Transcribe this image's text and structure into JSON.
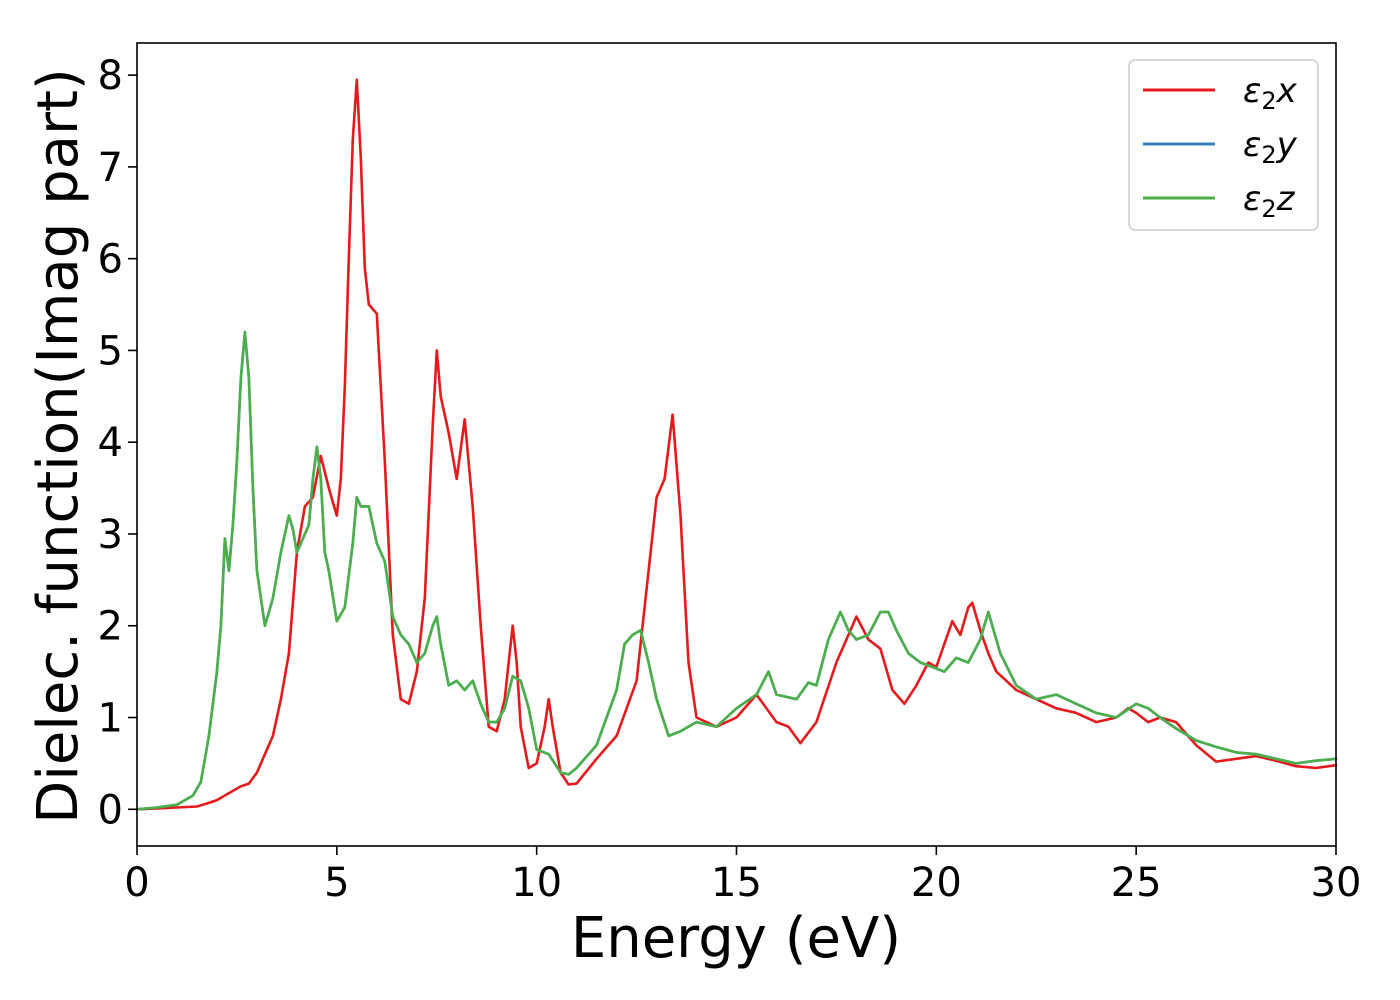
{
  "chart_data": {
    "type": "line",
    "xlabel": "Energy (eV)",
    "ylabel": "Dielec. function(Imag part)",
    "xlim": [
      0,
      30
    ],
    "ylim": [
      -0.4,
      8.35
    ],
    "xticks": [
      "0",
      "5",
      "10",
      "15",
      "20",
      "25",
      "30"
    ],
    "yticks": [
      "0",
      "1",
      "2",
      "3",
      "4",
      "5",
      "6",
      "7",
      "8"
    ],
    "grid": false,
    "legend_position": "top-right",
    "series": [
      {
        "name": "ε2x",
        "legend_base": "ε",
        "legend_sub": "2",
        "legend_axis": "x",
        "color": "#e41a1c",
        "x": [
          0,
          0.5,
          1.0,
          1.5,
          1.8,
          2.0,
          2.2,
          2.4,
          2.6,
          2.8,
          3.0,
          3.2,
          3.4,
          3.6,
          3.8,
          4.0,
          4.2,
          4.4,
          4.6,
          4.8,
          5.0,
          5.1,
          5.2,
          5.3,
          5.4,
          5.5,
          5.6,
          5.7,
          5.8,
          6.0,
          6.2,
          6.4,
          6.6,
          6.8,
          7.0,
          7.2,
          7.4,
          7.5,
          7.6,
          7.8,
          8.0,
          8.2,
          8.4,
          8.6,
          8.8,
          9.0,
          9.2,
          9.4,
          9.5,
          9.6,
          9.8,
          10.0,
          10.2,
          10.3,
          10.4,
          10.6,
          10.8,
          11.0,
          11.5,
          12.0,
          12.5,
          12.8,
          13.0,
          13.2,
          13.4,
          13.6,
          13.8,
          14.0,
          14.5,
          15.0,
          15.5,
          16.0,
          16.3,
          16.6,
          17.0,
          17.5,
          18.0,
          18.3,
          18.6,
          18.9,
          19.2,
          19.5,
          19.8,
          20.0,
          20.2,
          20.4,
          20.6,
          20.8,
          20.9,
          21.1,
          21.3,
          21.5,
          22.0,
          22.5,
          23.0,
          23.5,
          24.0,
          24.5,
          24.8,
          25.0,
          25.3,
          25.6,
          26.0,
          26.5,
          27.0,
          27.5,
          28.0,
          28.5,
          29.0,
          29.5,
          30.0
        ],
        "y": [
          0.0,
          0.01,
          0.02,
          0.03,
          0.07,
          0.1,
          0.15,
          0.2,
          0.25,
          0.28,
          0.4,
          0.6,
          0.8,
          1.2,
          1.7,
          2.8,
          3.3,
          3.4,
          3.85,
          3.5,
          3.2,
          3.6,
          4.6,
          6.0,
          7.3,
          7.95,
          7.1,
          5.9,
          5.5,
          5.4,
          3.8,
          1.9,
          1.2,
          1.15,
          1.5,
          2.3,
          4.2,
          5.0,
          4.5,
          4.1,
          3.6,
          4.25,
          3.3,
          2.0,
          0.9,
          0.85,
          1.2,
          2.0,
          1.6,
          0.9,
          0.45,
          0.5,
          0.9,
          1.2,
          0.9,
          0.4,
          0.27,
          0.28,
          0.55,
          0.8,
          1.4,
          2.6,
          3.4,
          3.6,
          4.3,
          3.2,
          1.6,
          1.0,
          0.9,
          1.0,
          1.25,
          0.95,
          0.9,
          0.72,
          0.95,
          1.6,
          2.1,
          1.85,
          1.75,
          1.3,
          1.15,
          1.35,
          1.6,
          1.55,
          1.8,
          2.05,
          1.9,
          2.2,
          2.25,
          1.95,
          1.7,
          1.5,
          1.3,
          1.2,
          1.1,
          1.05,
          0.95,
          1.0,
          1.1,
          1.05,
          0.95,
          1.0,
          0.95,
          0.7,
          0.52,
          0.55,
          0.58,
          0.53,
          0.47,
          0.45,
          0.48
        ]
      },
      {
        "name": "ε2y",
        "legend_base": "ε",
        "legend_sub": "2",
        "legend_axis": "y",
        "color": "#377eb8",
        "x": [
          0,
          0.5,
          1.0,
          1.4,
          1.6,
          1.8,
          2.0,
          2.1,
          2.2,
          2.3,
          2.4,
          2.5,
          2.6,
          2.7,
          2.8,
          2.9,
          3.0,
          3.2,
          3.4,
          3.6,
          3.8,
          3.9,
          4.0,
          4.1,
          4.2,
          4.3,
          4.4,
          4.5,
          4.6,
          4.7,
          4.8,
          5.0,
          5.2,
          5.4,
          5.5,
          5.6,
          5.8,
          6.0,
          6.2,
          6.4,
          6.6,
          6.8,
          7.0,
          7.2,
          7.4,
          7.5,
          7.6,
          7.8,
          8.0,
          8.2,
          8.4,
          8.6,
          8.8,
          9.0,
          9.2,
          9.4,
          9.6,
          9.8,
          10.0,
          10.3,
          10.6,
          10.8,
          11.0,
          11.5,
          12.0,
          12.2,
          12.4,
          12.6,
          12.8,
          13.0,
          13.3,
          13.6,
          14.0,
          14.5,
          15.0,
          15.5,
          15.8,
          16.0,
          16.5,
          16.8,
          17.0,
          17.3,
          17.6,
          17.8,
          18.0,
          18.3,
          18.6,
          18.8,
          19.0,
          19.3,
          19.6,
          19.9,
          20.2,
          20.5,
          20.8,
          21.1,
          21.3,
          21.6,
          22.0,
          22.5,
          23.0,
          23.5,
          24.0,
          24.5,
          25.0,
          25.3,
          25.6,
          26.0,
          26.5,
          27.0,
          27.5,
          28.0,
          28.5,
          29.0,
          29.5,
          30.0
        ],
        "y": [
          0.0,
          0.02,
          0.05,
          0.15,
          0.3,
          0.8,
          1.5,
          2.0,
          2.95,
          2.6,
          3.1,
          3.8,
          4.7,
          5.2,
          4.7,
          3.5,
          2.6,
          2.0,
          2.3,
          2.8,
          3.2,
          3.05,
          2.8,
          2.9,
          3.0,
          3.1,
          3.6,
          3.95,
          3.6,
          2.8,
          2.6,
          2.05,
          2.2,
          2.9,
          3.4,
          3.3,
          3.3,
          2.9,
          2.7,
          2.1,
          1.9,
          1.8,
          1.6,
          1.7,
          2.0,
          2.1,
          1.8,
          1.35,
          1.4,
          1.3,
          1.4,
          1.15,
          0.95,
          0.95,
          1.1,
          1.45,
          1.4,
          1.1,
          0.65,
          0.6,
          0.4,
          0.38,
          0.45,
          0.7,
          1.3,
          1.8,
          1.9,
          1.95,
          1.6,
          1.2,
          0.8,
          0.85,
          0.95,
          0.9,
          1.1,
          1.25,
          1.5,
          1.25,
          1.2,
          1.38,
          1.35,
          1.85,
          2.15,
          1.95,
          1.85,
          1.9,
          2.15,
          2.15,
          1.95,
          1.7,
          1.6,
          1.55,
          1.5,
          1.65,
          1.6,
          1.85,
          2.15,
          1.7,
          1.35,
          1.2,
          1.25,
          1.15,
          1.05,
          1.0,
          1.15,
          1.1,
          1.0,
          0.88,
          0.75,
          0.68,
          0.62,
          0.6,
          0.55,
          0.5,
          0.53,
          0.55
        ]
      },
      {
        "name": "ε2z",
        "legend_base": "ε",
        "legend_sub": "2",
        "legend_axis": "z",
        "color": "#4daf4a",
        "x": [
          0,
          0.5,
          1.0,
          1.4,
          1.6,
          1.8,
          2.0,
          2.1,
          2.2,
          2.3,
          2.4,
          2.5,
          2.6,
          2.7,
          2.8,
          2.9,
          3.0,
          3.2,
          3.4,
          3.6,
          3.8,
          3.9,
          4.0,
          4.1,
          4.2,
          4.3,
          4.4,
          4.5,
          4.6,
          4.7,
          4.8,
          5.0,
          5.2,
          5.4,
          5.5,
          5.6,
          5.8,
          6.0,
          6.2,
          6.4,
          6.6,
          6.8,
          7.0,
          7.2,
          7.4,
          7.5,
          7.6,
          7.8,
          8.0,
          8.2,
          8.4,
          8.6,
          8.8,
          9.0,
          9.2,
          9.4,
          9.6,
          9.8,
          10.0,
          10.3,
          10.6,
          10.8,
          11.0,
          11.5,
          12.0,
          12.2,
          12.4,
          12.6,
          12.8,
          13.0,
          13.3,
          13.6,
          14.0,
          14.5,
          15.0,
          15.5,
          15.8,
          16.0,
          16.5,
          16.8,
          17.0,
          17.3,
          17.6,
          17.8,
          18.0,
          18.3,
          18.6,
          18.8,
          19.0,
          19.3,
          19.6,
          19.9,
          20.2,
          20.5,
          20.8,
          21.1,
          21.3,
          21.6,
          22.0,
          22.5,
          23.0,
          23.5,
          24.0,
          24.5,
          25.0,
          25.3,
          25.6,
          26.0,
          26.5,
          27.0,
          27.5,
          28.0,
          28.5,
          29.0,
          29.5,
          30.0
        ],
        "y": [
          0.0,
          0.02,
          0.05,
          0.15,
          0.3,
          0.8,
          1.5,
          2.0,
          2.95,
          2.6,
          3.1,
          3.8,
          4.7,
          5.2,
          4.7,
          3.5,
          2.6,
          2.0,
          2.3,
          2.8,
          3.2,
          3.05,
          2.8,
          2.9,
          3.0,
          3.1,
          3.6,
          3.95,
          3.6,
          2.8,
          2.6,
          2.05,
          2.2,
          2.9,
          3.4,
          3.3,
          3.3,
          2.9,
          2.7,
          2.1,
          1.9,
          1.8,
          1.6,
          1.7,
          2.0,
          2.1,
          1.8,
          1.35,
          1.4,
          1.3,
          1.4,
          1.15,
          0.95,
          0.95,
          1.1,
          1.45,
          1.4,
          1.1,
          0.65,
          0.6,
          0.4,
          0.38,
          0.45,
          0.7,
          1.3,
          1.8,
          1.9,
          1.95,
          1.6,
          1.2,
          0.8,
          0.85,
          0.95,
          0.9,
          1.1,
          1.25,
          1.5,
          1.25,
          1.2,
          1.38,
          1.35,
          1.85,
          2.15,
          1.95,
          1.85,
          1.9,
          2.15,
          2.15,
          1.95,
          1.7,
          1.6,
          1.55,
          1.5,
          1.65,
          1.6,
          1.85,
          2.15,
          1.7,
          1.35,
          1.2,
          1.25,
          1.15,
          1.05,
          1.0,
          1.15,
          1.1,
          1.0,
          0.88,
          0.75,
          0.68,
          0.62,
          0.6,
          0.55,
          0.5,
          0.53,
          0.55
        ]
      }
    ]
  }
}
